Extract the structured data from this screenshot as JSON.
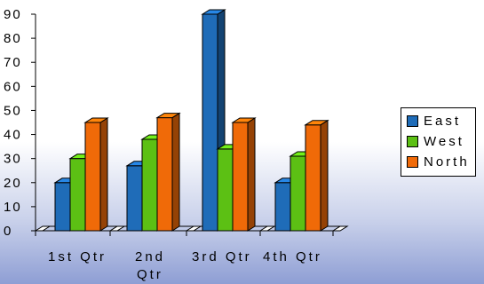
{
  "chart_data": {
    "type": "bar",
    "categories": [
      "1st  Qtr",
      "2nd Qtr",
      "3rd  Qtr",
      "4th Qtr"
    ],
    "series": [
      {
        "name": "East",
        "values": [
          20,
          27,
          90,
          20
        ],
        "color": "#1f6cb8"
      },
      {
        "name": "West",
        "values": [
          30,
          38,
          34,
          31
        ],
        "color": "#5cc014"
      },
      {
        "name": "North",
        "values": [
          45,
          47,
          45,
          44
        ],
        "color": "#f06a08"
      }
    ],
    "yticks": [
      "0",
      "10",
      "20",
      "30",
      "40",
      "50",
      "60",
      "70",
      "80",
      "90"
    ],
    "ylim": [
      0,
      90
    ],
    "legend_position": "right",
    "style": "3d-clustered-column",
    "grid": false
  }
}
